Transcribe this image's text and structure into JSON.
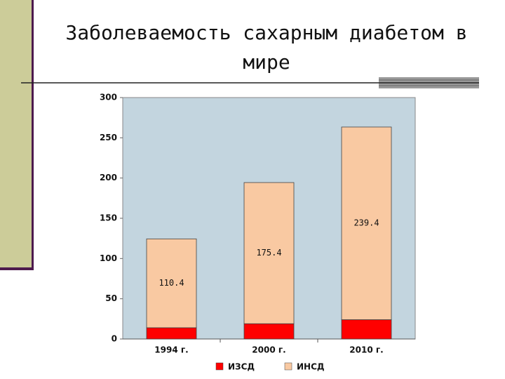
{
  "chart_data": {
    "type": "stacked_bar",
    "title": "Заболеваемость сахарным диабетом в мире",
    "categories": [
      "1994 г.",
      "2000 г.",
      "2010 г."
    ],
    "series": [
      {
        "name": "ИЗСД",
        "color": "#ff0000",
        "values": [
          14,
          19,
          24
        ]
      },
      {
        "name": "ИНСД",
        "color": "#f9c9a2",
        "values": [
          110.4,
          175.4,
          239.4
        ],
        "data_labels": true
      }
    ],
    "ylim": [
      0,
      300
    ],
    "yticks": [
      0,
      50,
      100,
      150,
      200,
      250,
      300
    ],
    "legend": "bottom"
  }
}
